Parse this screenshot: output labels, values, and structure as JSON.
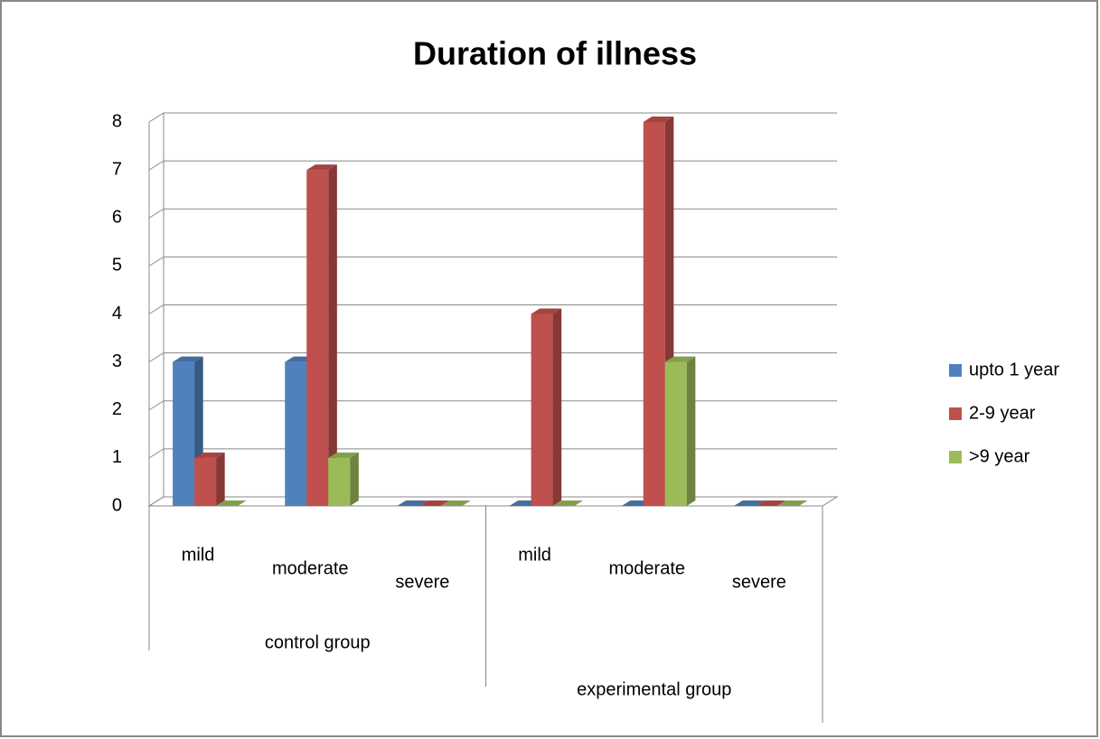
{
  "chart_data": {
    "type": "bar3d",
    "title": "Duration of illness",
    "groups": [
      {
        "name": "control group",
        "categories": [
          "mild",
          "moderate",
          "severe"
        ]
      },
      {
        "name": "experimental group",
        "categories": [
          "mild",
          "moderate",
          "severe"
        ]
      }
    ],
    "series": [
      {
        "name": "upto 1 year",
        "color": "#4f81bd",
        "values": [
          3,
          3,
          0,
          0,
          0,
          0
        ]
      },
      {
        "name": "2-9 year",
        "color": "#c0504d",
        "values": [
          1,
          7,
          0,
          4,
          8,
          0
        ]
      },
      {
        "name": ">9 year",
        "color": "#9bbb59",
        "values": [
          0,
          1,
          0,
          0,
          3,
          0
        ]
      }
    ],
    "ylim": [
      0,
      8
    ],
    "yticks": [
      0,
      1,
      2,
      3,
      4,
      5,
      6,
      7,
      8
    ],
    "grid": true,
    "legend": "right"
  }
}
